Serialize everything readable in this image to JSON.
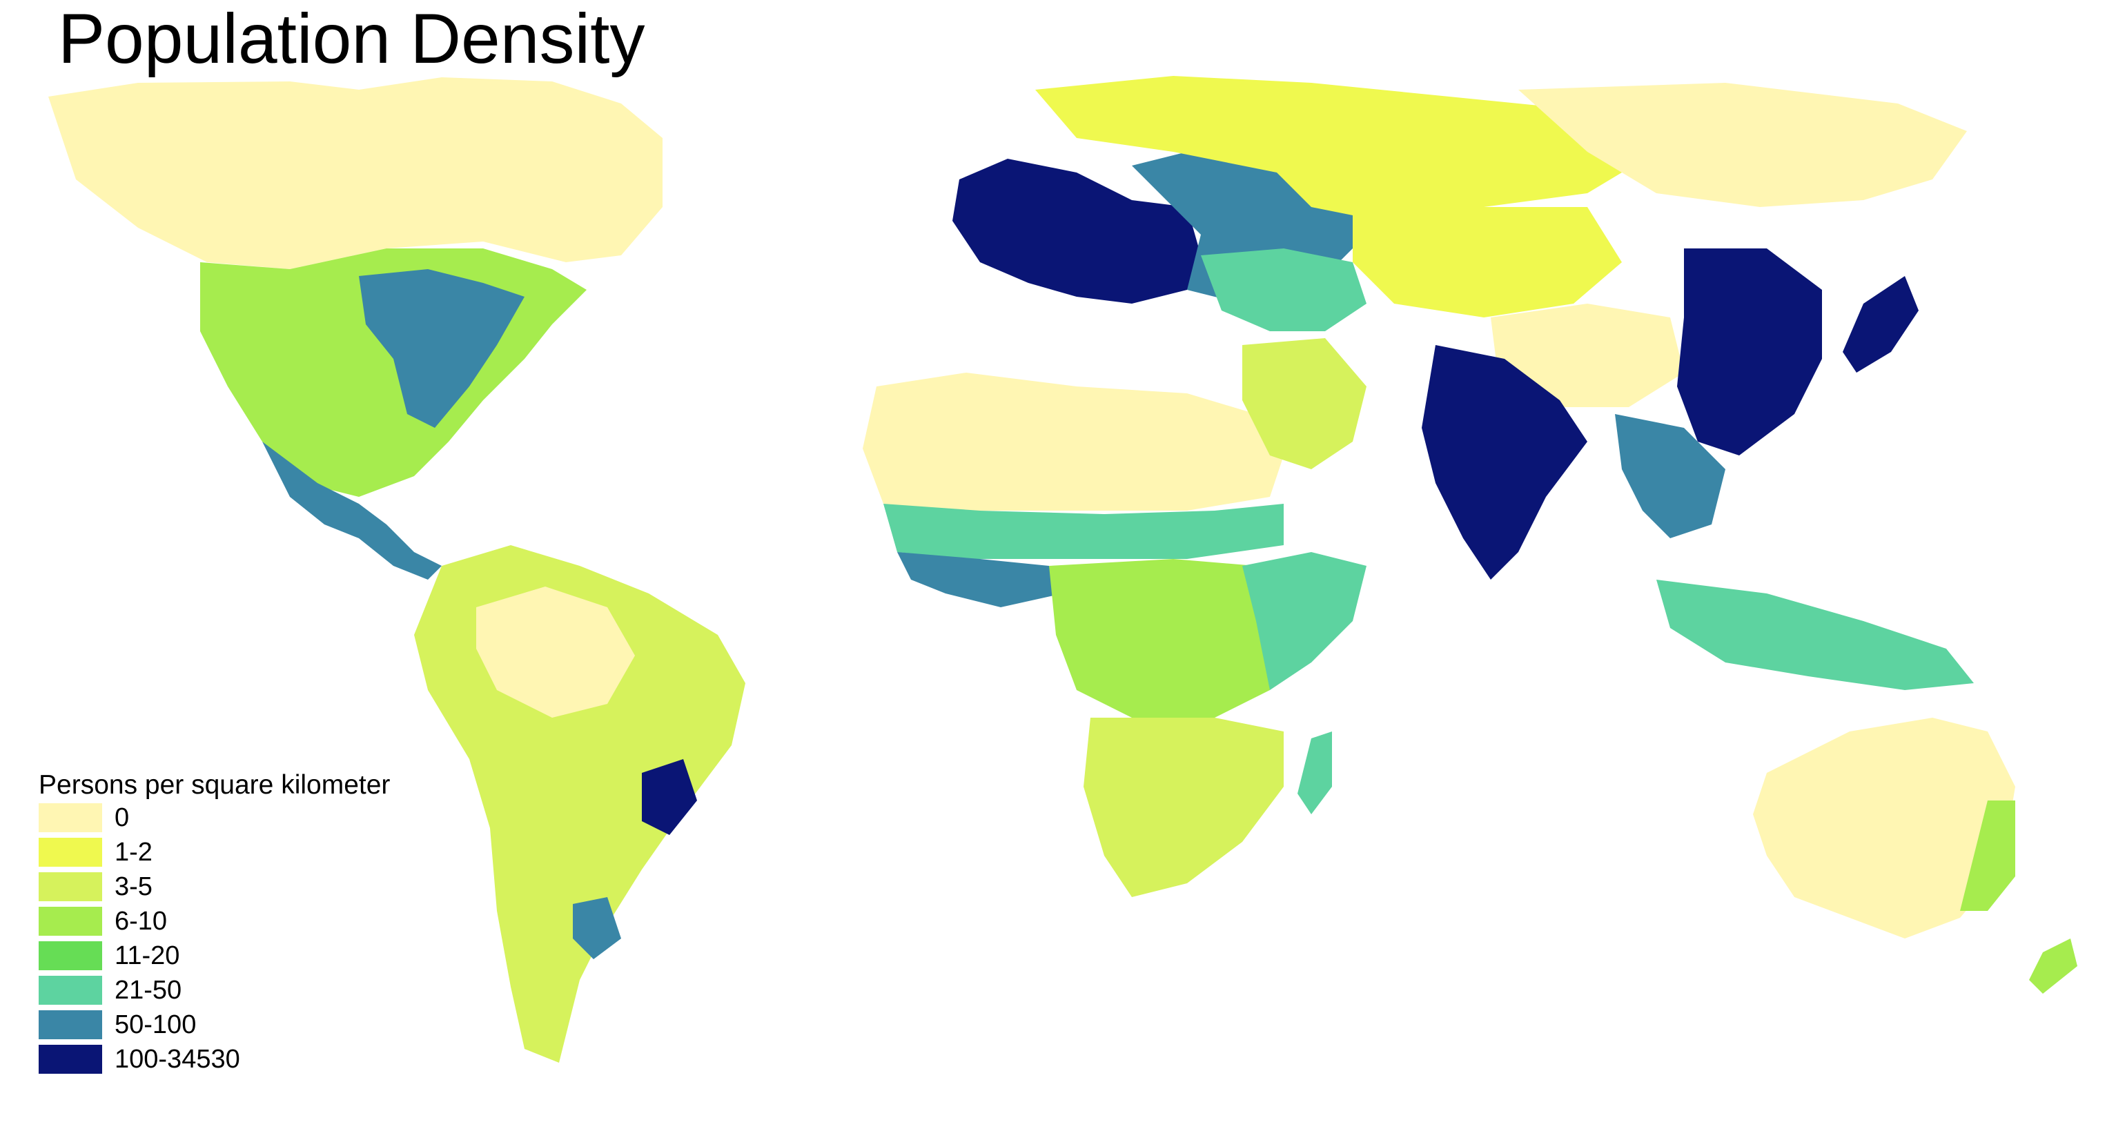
{
  "title": "Population Density",
  "legend": {
    "title": "Persons per square kilometer",
    "classes": [
      {
        "label": "0",
        "color": "#fff6b3"
      },
      {
        "label": "1-2",
        "color": "#eff94f"
      },
      {
        "label": "3-5",
        "color": "#d6f25c"
      },
      {
        "label": "6-10",
        "color": "#a6ec4e"
      },
      {
        "label": "11-20",
        "color": "#66dd55"
      },
      {
        "label": "21-50",
        "color": "#5dd3a0"
      },
      {
        "label": "50-100",
        "color": "#3a86a6"
      },
      {
        "label": "100-34530",
        "color": "#0a1575"
      }
    ]
  },
  "regions": [
    {
      "name": "north-america-north",
      "class": 0
    },
    {
      "name": "north-america-south",
      "class": 3
    },
    {
      "name": "usa-east",
      "class": 6
    },
    {
      "name": "central-america",
      "class": 6
    },
    {
      "name": "south-america",
      "class": 2
    },
    {
      "name": "amazon",
      "class": 0
    },
    {
      "name": "brazil-southeast",
      "class": 7
    },
    {
      "name": "pampas",
      "class": 6
    },
    {
      "name": "europe",
      "class": 7
    },
    {
      "name": "eastern-europe",
      "class": 6
    },
    {
      "name": "russia",
      "class": 1
    },
    {
      "name": "siberia",
      "class": 0
    },
    {
      "name": "sahara",
      "class": 0
    },
    {
      "name": "sahel",
      "class": 5
    },
    {
      "name": "west-africa",
      "class": 6
    },
    {
      "name": "central-africa",
      "class": 3
    },
    {
      "name": "east-africa",
      "class": 5
    },
    {
      "name": "southern-africa",
      "class": 2
    },
    {
      "name": "arabia",
      "class": 2
    },
    {
      "name": "middle-east",
      "class": 5
    },
    {
      "name": "central-asia",
      "class": 1
    },
    {
      "name": "tibet",
      "class": 0
    },
    {
      "name": "india",
      "class": 7
    },
    {
      "name": "china-east",
      "class": 7
    },
    {
      "name": "southeast-asia",
      "class": 6
    },
    {
      "name": "japan",
      "class": 7
    },
    {
      "name": "indonesia",
      "class": 5
    },
    {
      "name": "australia",
      "class": 0
    },
    {
      "name": "australia-east",
      "class": 3
    },
    {
      "name": "new-zealand",
      "class": 3
    },
    {
      "name": "madagascar",
      "class": 5
    }
  ]
}
